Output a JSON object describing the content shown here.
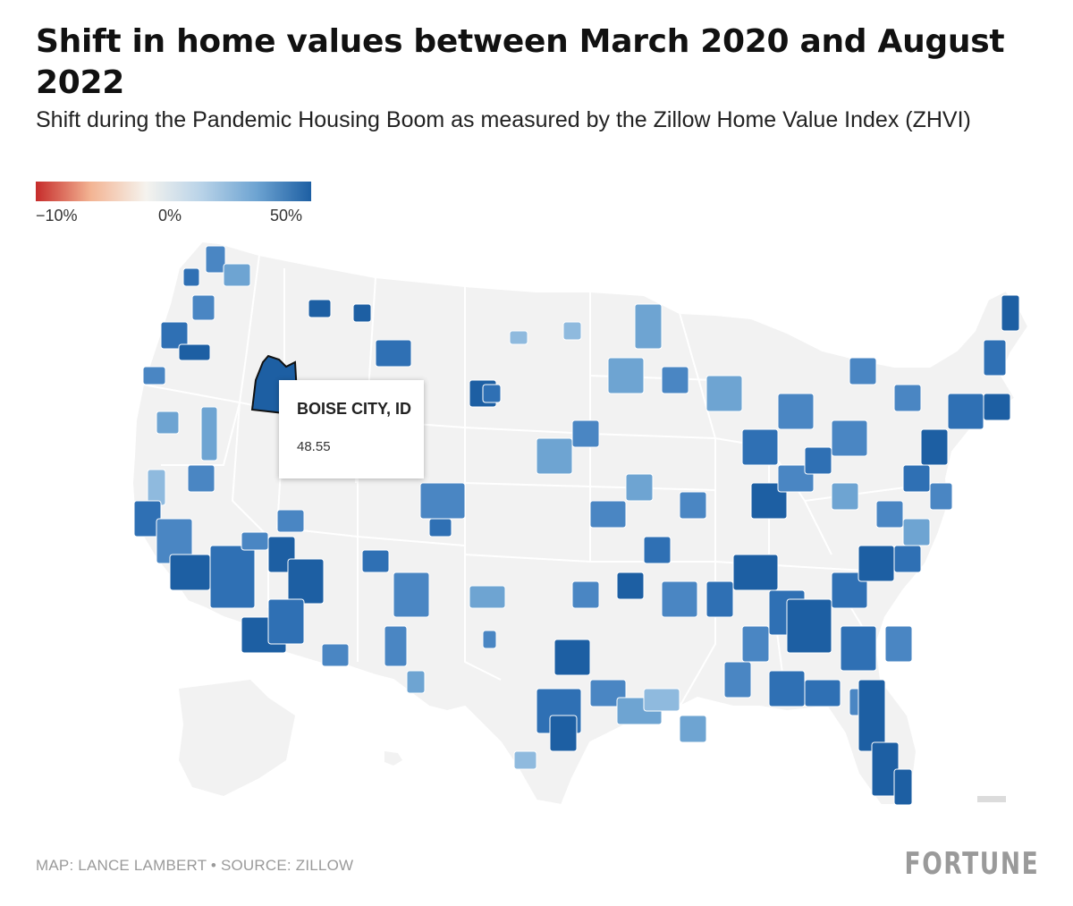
{
  "title": "Shift in home values between March 2020 and August 2022",
  "subtitle": "Shift during the Pandemic Housing Boom as measured by the Zillow Home Value Index (ZHVI)",
  "legend": {
    "min_label": "−10%",
    "mid_label": "0%",
    "max_label": "50%",
    "min_value": -10,
    "mid_value": 0,
    "max_value": 50,
    "colors": [
      "#c62c2b",
      "#f3b493",
      "#f5f3ee",
      "#b9d3e8",
      "#6ea4d2",
      "#1d5fa3"
    ]
  },
  "colors": {
    "land": "#f2f2f2",
    "state_border": "#ffffff",
    "highlight": "#1d5fa3",
    "no_data": "#dcdcdc"
  },
  "tooltip": {
    "title": "BOISE CITY, ID",
    "value": "48.55"
  },
  "credit": "MAP: LANCE LAMBERT • SOURCE: ZILLOW",
  "logo": "FORTUNE"
}
